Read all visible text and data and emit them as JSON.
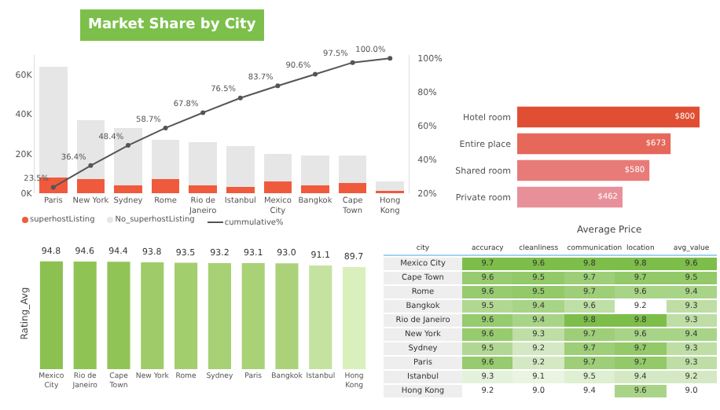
{
  "chart_data": [
    {
      "type": "bar",
      "title": "Market Share by City",
      "stacked": true,
      "legend": "bottom",
      "marker": "circle",
      "categories": [
        "Paris",
        "New York",
        "Sydney",
        "Rome",
        "Rio de Janeiro",
        "Istanbul",
        "Mexico City",
        "Bangkok",
        "Cape Town",
        "Hong Kong"
      ],
      "ylim": [
        0,
        70000
      ],
      "yticks": [
        {
          "value": 0,
          "label": "0K"
        },
        {
          "value": 20000,
          "label": "20K"
        },
        {
          "value": 40000,
          "label": "40K"
        },
        {
          "value": 60000,
          "label": "60K"
        }
      ],
      "y2lim": [
        20,
        102
      ],
      "y2ticks": [
        {
          "value": 20,
          "label": "20%"
        },
        {
          "value": 40,
          "label": "40%"
        },
        {
          "value": 60,
          "label": "60%"
        },
        {
          "value": 80,
          "label": "80%"
        },
        {
          "value": 100,
          "label": "100%"
        }
      ],
      "series": [
        {
          "name": "superhostListing",
          "color": "#f05a3c",
          "values": [
            8000,
            7000,
            4000,
            7000,
            4000,
            3000,
            6000,
            4000,
            5000,
            1000
          ]
        },
        {
          "name": "No_superhostListing",
          "color": "#e6e6e6",
          "values": [
            56000,
            30000,
            29000,
            20000,
            22000,
            21000,
            14000,
            15000,
            14000,
            5000
          ]
        },
        {
          "name": "cummulative%",
          "type": "line",
          "axis": "y2",
          "color": "#555555",
          "values": [
            23.5,
            36.4,
            48.4,
            58.7,
            67.8,
            76.5,
            83.7,
            90.6,
            97.5,
            100.0
          ],
          "value_labels": [
            "23.5%",
            "36.4%",
            "48.4%",
            "58.7%",
            "67.8%",
            "76.5%",
            "83.7%",
            "90.6%",
            "97.5%",
            "100.0%"
          ]
        }
      ]
    },
    {
      "type": "bar",
      "orientation": "horizontal",
      "title": "Average Price",
      "tick_labels": "y",
      "categories": [
        "Hotel room",
        "Entire place",
        "Shared room",
        "Private room"
      ],
      "values": [
        800,
        673,
        580,
        462
      ],
      "value_labels": [
        "$800",
        "$673",
        "$580",
        "$462"
      ],
      "colors": [
        "#e04e33",
        "#e5685a",
        "#e87b78",
        "#e8909a"
      ],
      "xlim": [
        0,
        800
      ]
    },
    {
      "type": "bar",
      "ylabel": "Rating_Avg",
      "tick_labels": "x",
      "value_labels": [
        "94.8",
        "94.6",
        "94.4",
        "93.8",
        "93.5",
        "93.2",
        "93.1",
        "93.0",
        "91.1",
        "89.7"
      ],
      "categories": [
        "Mexico City",
        "Rio de Janeiro",
        "Cape Town",
        "New York",
        "Rome",
        "Sydney",
        "Paris",
        "Bangkok",
        "Istanbul",
        "Hong Kong"
      ],
      "values": [
        94.8,
        94.6,
        94.4,
        93.8,
        93.5,
        93.2,
        93.1,
        93.0,
        91.1,
        89.7
      ],
      "colors": [
        "#8cc152",
        "#8fc455",
        "#91c457",
        "#9fcb69",
        "#a3ce6e",
        "#a7d174",
        "#a9d176",
        "#abd279",
        "#c5e3a0",
        "#d9f0bd"
      ],
      "ylim": [
        0,
        98
      ]
    },
    {
      "type": "heatmap",
      "ylabel": "city",
      "cell_labels": [
        [
          "9.7",
          "9.6",
          "9.8",
          "9.8",
          "9.6"
        ],
        [
          "9.6",
          "9.5",
          "9.7",
          "9.7",
          "9.5"
        ],
        [
          "9.6",
          "9.5",
          "9.7",
          "9.6",
          "9.4"
        ],
        [
          "9.5",
          "9.4",
          "9.6",
          "9.2",
          "9.3"
        ],
        [
          "9.6",
          "9.4",
          "9.8",
          "9.8",
          "9.3"
        ],
        [
          "9.6",
          "9.3",
          "9.7",
          "9.6",
          "9.4"
        ],
        [
          "9.5",
          "9.2",
          "9.7",
          "9.7",
          "9.3"
        ],
        [
          "9.6",
          "9.2",
          "9.7",
          "9.7",
          "9.3"
        ],
        [
          "9.3",
          "9.1",
          "9.5",
          "9.4",
          "9.2"
        ],
        [
          "9.2",
          "9.0",
          "9.4",
          "9.6",
          "9.0"
        ]
      ],
      "categories": [
        "accuracy",
        "cleanliness",
        "communication",
        "location",
        "avg_value"
      ],
      "y_categories": [
        "Mexico City",
        "Cape Town",
        "Rome",
        "Bangkok",
        "Rio de Janeiro",
        "New York",
        "Sydney",
        "Paris",
        "Istanbul",
        "Hong Kong"
      ],
      "cells": [
        [
          9.7,
          9.6,
          9.8,
          9.8,
          9.6
        ],
        [
          9.6,
          9.5,
          9.7,
          9.7,
          9.5
        ],
        [
          9.6,
          9.5,
          9.7,
          9.6,
          9.4
        ],
        [
          9.5,
          9.4,
          9.6,
          9.2,
          9.3
        ],
        [
          9.6,
          9.4,
          9.8,
          9.8,
          9.3
        ],
        [
          9.6,
          9.3,
          9.7,
          9.6,
          9.4
        ],
        [
          9.5,
          9.2,
          9.7,
          9.7,
          9.3
        ],
        [
          9.6,
          9.2,
          9.7,
          9.7,
          9.3
        ],
        [
          9.3,
          9.1,
          9.5,
          9.4,
          9.2
        ],
        [
          9.2,
          9.0,
          9.4,
          9.6,
          9.0
        ]
      ]
    }
  ]
}
